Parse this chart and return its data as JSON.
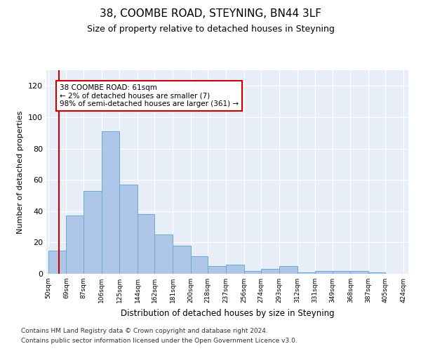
{
  "title1": "38, COOMBE ROAD, STEYNING, BN44 3LF",
  "title2": "Size of property relative to detached houses in Steyning",
  "xlabel": "Distribution of detached houses by size in Steyning",
  "ylabel": "Number of detached properties",
  "bin_edges": [
    50,
    69,
    87,
    106,
    125,
    144,
    162,
    181,
    200,
    218,
    237,
    256,
    274,
    293,
    312,
    331,
    349,
    368,
    387,
    405,
    424
  ],
  "bar_heights": [
    15,
    37,
    53,
    91,
    57,
    38,
    25,
    18,
    11,
    5,
    6,
    2,
    3,
    5,
    1,
    2,
    2,
    2,
    1,
    0
  ],
  "bar_color": "#aec6e8",
  "bar_edge_color": "#6aaad4",
  "vline_x": 61,
  "vline_color": "#cc0000",
  "annotation_text": "38 COOMBE ROAD: 61sqm\n← 2% of detached houses are smaller (7)\n98% of semi-detached houses are larger (361) →",
  "annotation_box_color": "white",
  "annotation_box_edge_color": "#cc0000",
  "ylim": [
    0,
    130
  ],
  "yticks": [
    0,
    20,
    40,
    60,
    80,
    100,
    120
  ],
  "footnote1": "Contains HM Land Registry data © Crown copyright and database right 2024.",
  "footnote2": "Contains public sector information licensed under the Open Government Licence v3.0.",
  "bg_color": "#e8eef8"
}
